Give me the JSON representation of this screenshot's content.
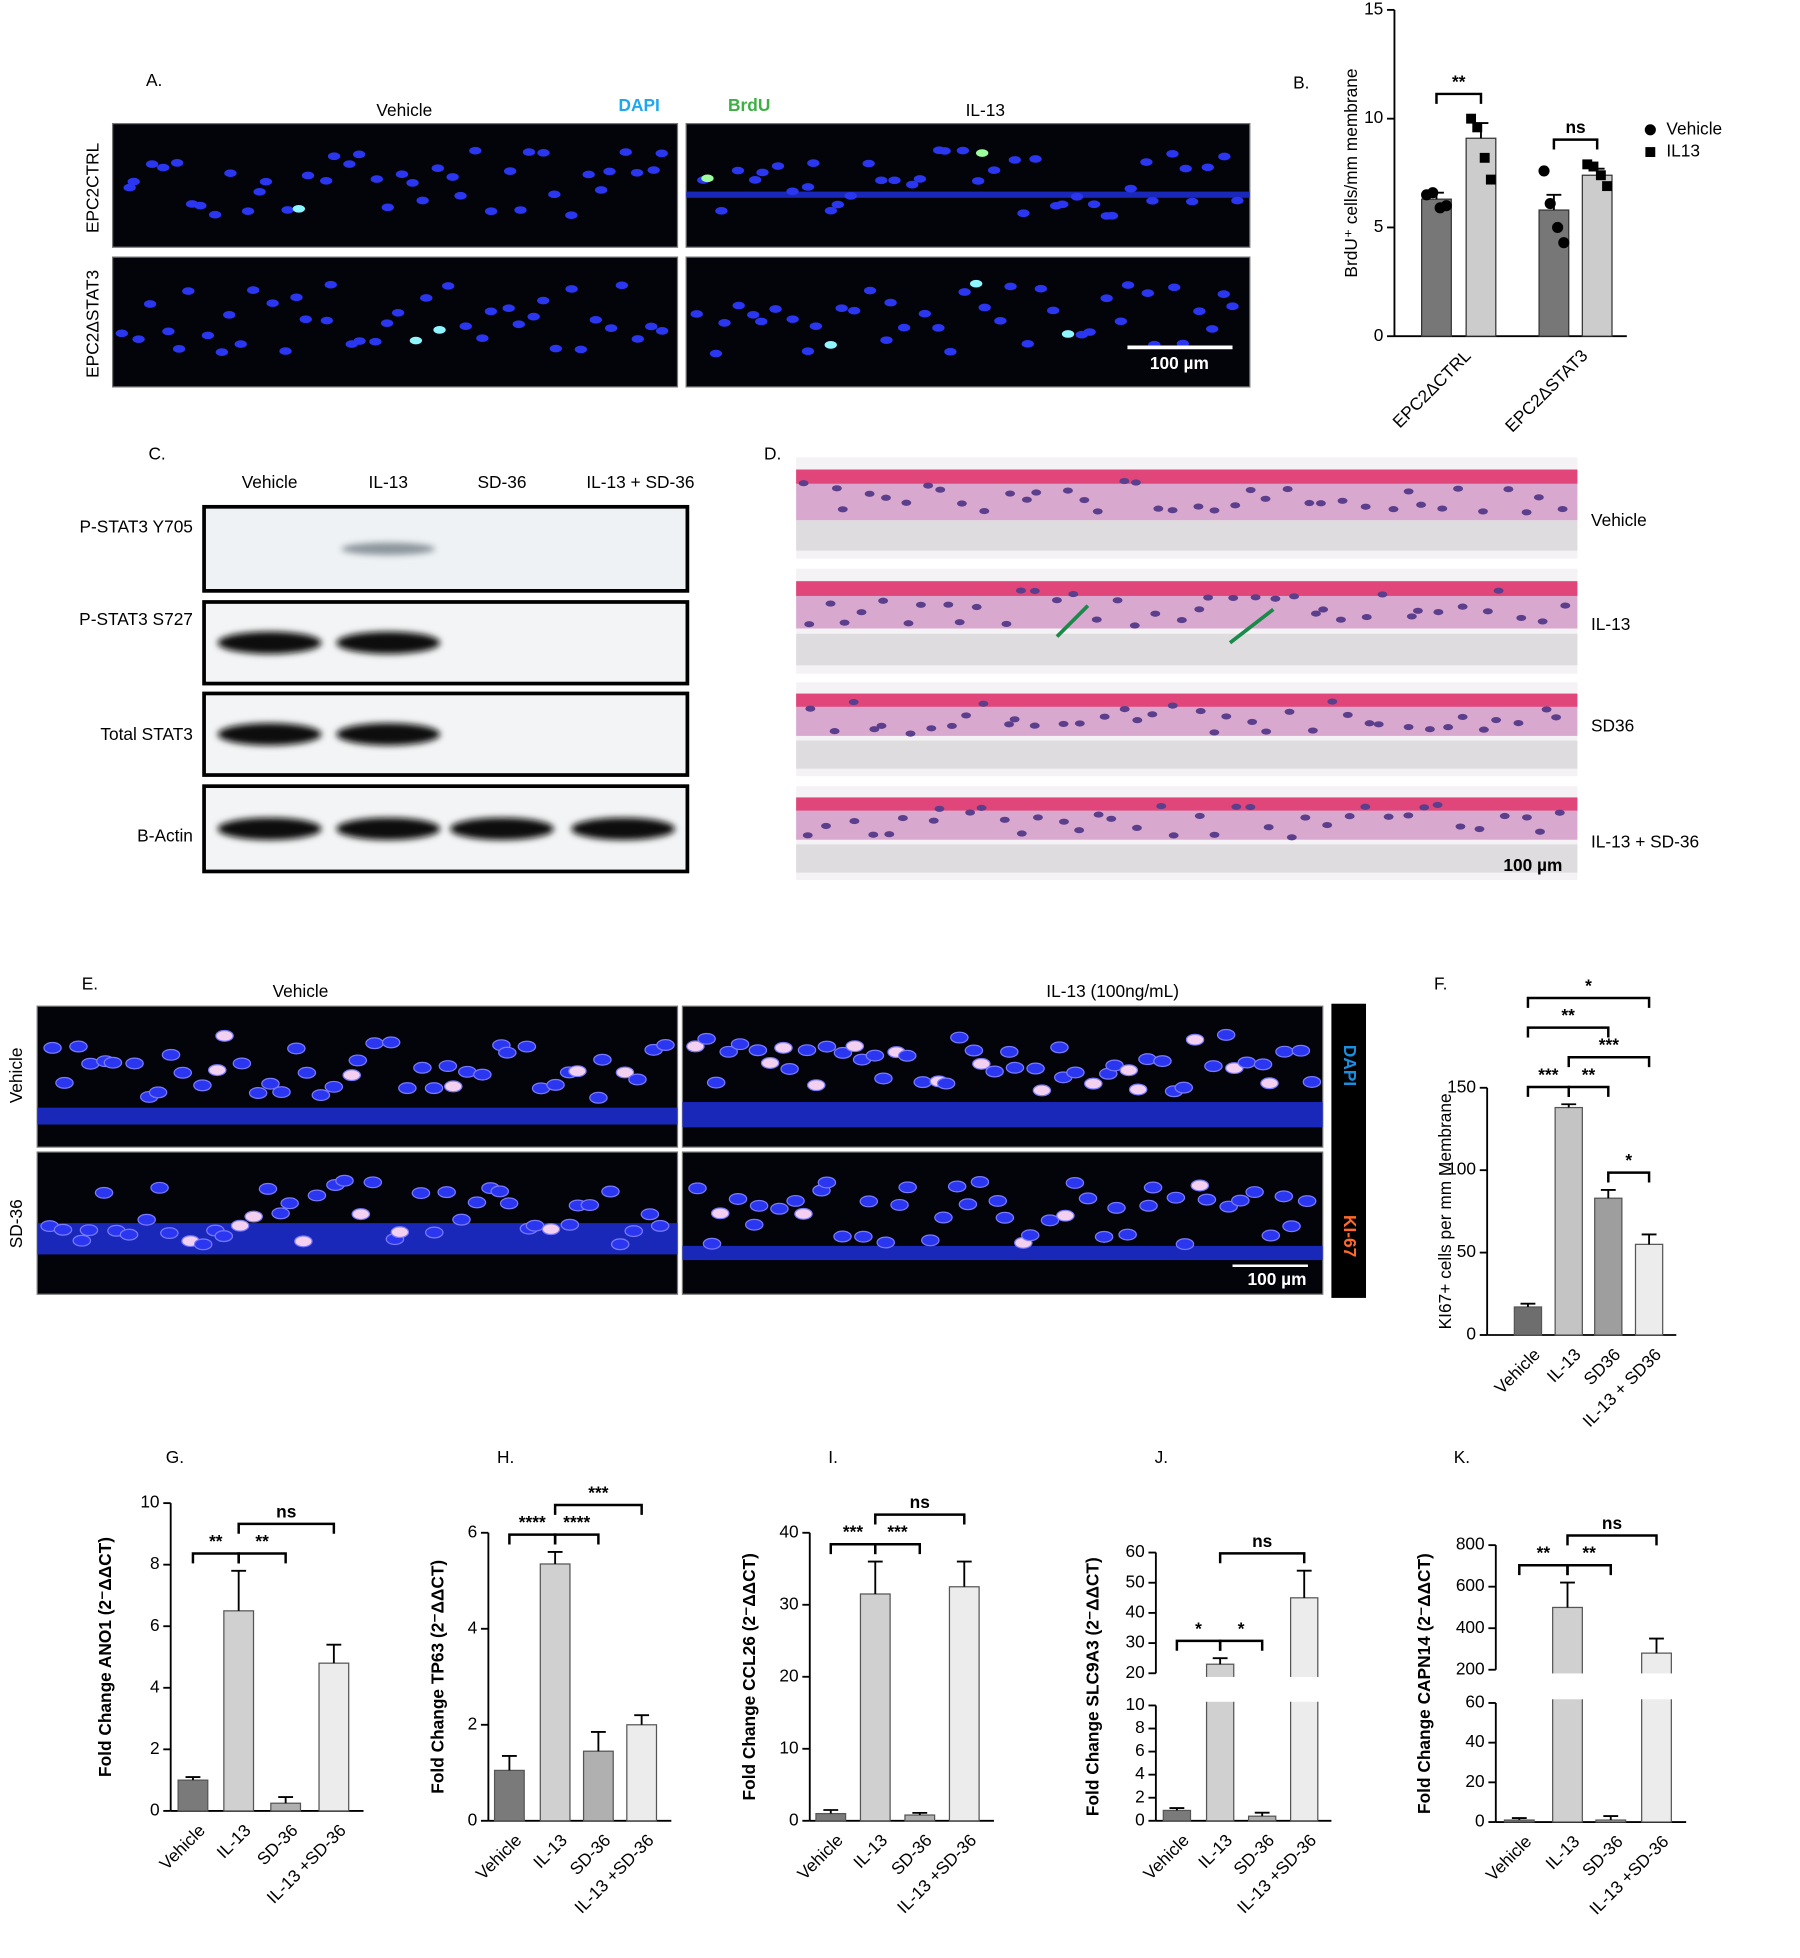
{
  "panel_a": {
    "label": "A.",
    "columns": [
      "Vehicle",
      "IL-13"
    ],
    "stains": [
      "DAPI",
      "BrdU"
    ],
    "rows": [
      "EPC2CTRL",
      "EPC2ΔSTAT3"
    ],
    "scale_bar": "100 µm"
  },
  "panel_c": {
    "label": "C.",
    "lanes": [
      "Vehicle",
      "IL-13",
      "SD-36",
      "IL-13 + SD-36"
    ],
    "rows": [
      "P-STAT3 Y705",
      "P-STAT3 S727",
      "Total STAT3",
      "B-Actin"
    ]
  },
  "panel_d": {
    "label": "D.",
    "rows": [
      "Vehicle",
      "IL-13",
      "SD36",
      "IL-13 + SD-36"
    ],
    "scale_bar": "100 µm"
  },
  "panel_e": {
    "label": "E.",
    "columns": [
      "Vehicle",
      "IL-13 (100ng/mL)"
    ],
    "rows": [
      "Vehicle",
      "SD-36"
    ],
    "stains": [
      "DAPI",
      "KI-67"
    ],
    "scale_bar": "100 µm"
  },
  "chart_data": [
    {
      "type": "bar",
      "panel_label": "B.",
      "ylabel": "BrdU⁺ cells/mm membrane",
      "categories": [
        "EPC2ΔCTRL",
        "EPC2ΔSTAT3"
      ],
      "series": [
        {
          "name": "Vehicle",
          "color": "#777777",
          "marker": "circle",
          "values": [
            6.3,
            5.8
          ],
          "errors": [
            0.3,
            0.7
          ],
          "points": [
            [
              6.5,
              6.6,
              5.9,
              6.0
            ],
            [
              7.6,
              6.1,
              5.0,
              4.3
            ]
          ]
        },
        {
          "name": "IL13",
          "color": "#cccccc",
          "marker": "square",
          "values": [
            9.1,
            7.4
          ],
          "errors": [
            0.7,
            0.3
          ],
          "points": [
            [
              10.0,
              9.6,
              8.2,
              7.2
            ],
            [
              7.9,
              7.8,
              7.4,
              6.9
            ]
          ]
        }
      ],
      "ylim": [
        0,
        15
      ],
      "yticks": [
        0,
        5,
        10,
        15
      ],
      "legend": "right",
      "annotations": [
        {
          "text": "**",
          "category": 0
        },
        {
          "text": "ns",
          "category": 1
        }
      ]
    },
    {
      "type": "bar",
      "panel_label": "F.",
      "ylabel": "KI67+ cells per mm Membrane",
      "categories": [
        "Vehicle",
        "IL-13",
        "SD36",
        "IL-13 + SD36"
      ],
      "values": [
        17,
        138,
        83,
        55
      ],
      "errors": [
        2,
        2,
        5,
        6
      ],
      "colors": [
        "#6e6e6e",
        "#c4c4c4",
        "#9e9e9e",
        "#ececec"
      ],
      "ylim": [
        0,
        150
      ],
      "yticks": [
        0,
        50,
        100,
        150
      ],
      "annotations": [
        {
          "text": "***",
          "pair": [
            0,
            1
          ]
        },
        {
          "text": "*",
          "pair": [
            2,
            3
          ]
        },
        {
          "text": "**",
          "pair": [
            1,
            2
          ]
        },
        {
          "text": "***",
          "pair": [
            1,
            3
          ]
        },
        {
          "text": "**",
          "pair": [
            0,
            2
          ]
        },
        {
          "text": "*",
          "pair": [
            0,
            3
          ]
        }
      ]
    },
    {
      "type": "bar",
      "panel_label": "G.",
      "ylabel": "Fold Change ANO1 (2⁻ΔΔCT)",
      "categories": [
        "Vehicle",
        "IL-13",
        "SD-36",
        "IL-13 +SD-36"
      ],
      "values": [
        1.0,
        6.5,
        0.25,
        4.8
      ],
      "errors": [
        0.1,
        1.3,
        0.2,
        0.6
      ],
      "colors": [
        "#7a7a7a",
        "#d0d0d0",
        "#b0b0b0",
        "#ececec"
      ],
      "ylim": [
        0,
        10
      ],
      "yticks": [
        0,
        2,
        4,
        6,
        8,
        10
      ],
      "annotations": [
        {
          "text": "**",
          "pair": [
            0,
            1
          ]
        },
        {
          "text": "**",
          "pair": [
            1,
            2
          ]
        },
        {
          "text": "ns",
          "pair": [
            1,
            3
          ]
        }
      ]
    },
    {
      "type": "bar",
      "panel_label": "H.",
      "ylabel": "Fold Change TP63 (2⁻ΔΔCT)",
      "categories": [
        "Vehicle",
        "IL-13",
        "SD-36",
        "IL-13 +SD-36"
      ],
      "values": [
        1.05,
        5.35,
        1.45,
        2.0
      ],
      "errors": [
        0.3,
        0.25,
        0.4,
        0.2
      ],
      "colors": [
        "#7a7a7a",
        "#d0d0d0",
        "#b0b0b0",
        "#ececec"
      ],
      "ylim": [
        0,
        6
      ],
      "yticks": [
        0,
        2,
        4,
        6
      ],
      "annotations": [
        {
          "text": "****",
          "pair": [
            0,
            1
          ]
        },
        {
          "text": "****",
          "pair": [
            1,
            2
          ]
        },
        {
          "text": "***",
          "pair": [
            1,
            3
          ]
        }
      ]
    },
    {
      "type": "bar",
      "panel_label": "I.",
      "ylabel": "Fold Change CCL26 (2⁻ΔΔCT)",
      "categories": [
        "Vehicle",
        "IL-13",
        "SD-36",
        "IL-13 +SD-36"
      ],
      "values": [
        1,
        31.5,
        0.8,
        32.5
      ],
      "errors": [
        0.5,
        4.5,
        0.3,
        3.5
      ],
      "colors": [
        "#7a7a7a",
        "#d0d0d0",
        "#b0b0b0",
        "#ececec"
      ],
      "ylim": [
        0,
        40
      ],
      "yticks": [
        0,
        10,
        20,
        30,
        40
      ],
      "annotations": [
        {
          "text": "***",
          "pair": [
            0,
            1
          ]
        },
        {
          "text": "***",
          "pair": [
            1,
            2
          ]
        },
        {
          "text": "ns",
          "pair": [
            1,
            3
          ]
        }
      ]
    },
    {
      "type": "bar",
      "panel_label": "J.",
      "ylabel": "Fold Change SLC9A3 (2⁻ΔΔCT)",
      "categories": [
        "Vehicle",
        "IL-13",
        "SD-36",
        "IL-13 +SD-36"
      ],
      "values": [
        0.9,
        23,
        0.4,
        45
      ],
      "errors": [
        0.2,
        2,
        0.3,
        9
      ],
      "colors": [
        "#7a7a7a",
        "#d0d0d0",
        "#b0b0b0",
        "#ececec"
      ],
      "ylim": [
        0,
        60
      ],
      "ybreak": [
        10,
        20
      ],
      "yticks": [
        0,
        2,
        4,
        6,
        8,
        10,
        20,
        30,
        40,
        50,
        60
      ],
      "annotations": [
        {
          "text": "*",
          "pair": [
            0,
            1
          ]
        },
        {
          "text": "*",
          "pair": [
            1,
            2
          ]
        },
        {
          "text": "ns",
          "pair": [
            1,
            3
          ]
        }
      ]
    },
    {
      "type": "bar",
      "panel_label": "K.",
      "ylabel": "Fold Change CAPN14 (2⁻ΔΔCT)",
      "categories": [
        "Vehicle",
        "IL-13",
        "SD-36",
        "IL-13 +SD-36"
      ],
      "values": [
        1,
        500,
        1,
        280
      ],
      "errors": [
        1,
        120,
        2,
        70
      ],
      "colors": [
        "#7a7a7a",
        "#d0d0d0",
        "#b0b0b0",
        "#ececec"
      ],
      "ylim": [
        0,
        800
      ],
      "ybreak": [
        60,
        200
      ],
      "yticks": [
        0,
        20,
        40,
        60,
        200,
        400,
        600,
        800
      ],
      "annotations": [
        {
          "text": "**",
          "pair": [
            0,
            1
          ]
        },
        {
          "text": "**",
          "pair": [
            1,
            2
          ]
        },
        {
          "text": "ns",
          "pair": [
            1,
            3
          ]
        }
      ]
    }
  ]
}
